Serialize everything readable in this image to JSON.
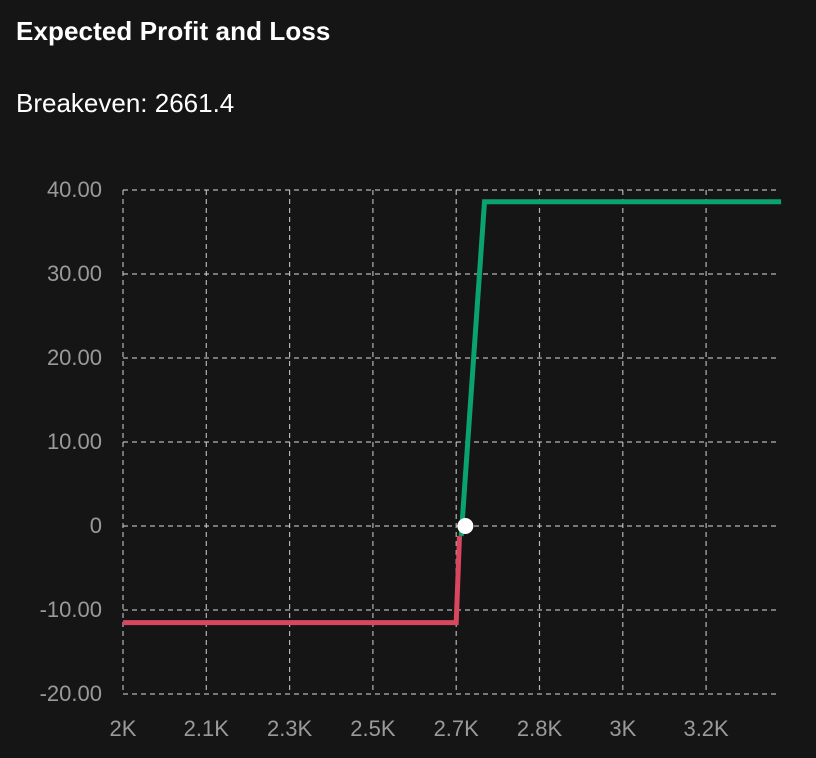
{
  "header": {
    "title": "Expected Profit and Loss",
    "breakeven_label": "Breakeven: 2661.4"
  },
  "colors": {
    "background": "#151515",
    "profit": "#0aa370",
    "loss": "#d9475f",
    "grid": "#d0d0d0",
    "tick_text": "#9a9a9a",
    "breakeven_marker": "#ffffff"
  },
  "chart_data": {
    "type": "line",
    "title": "Expected Profit and Loss",
    "subtitle": "Breakeven: 2661.4",
    "xlabel": "",
    "ylabel": "",
    "x_ticks": [
      "2K",
      "2.1K",
      "2.3K",
      "2.5K",
      "2.7K",
      "2.8K",
      "3K",
      "3.2K"
    ],
    "y_ticks": [
      "40.00",
      "30.00",
      "20.00",
      "10.00",
      "0",
      "-10.00",
      "-20.00"
    ],
    "ylim": [
      -20,
      40
    ],
    "grid": true,
    "line_style": "dashed grid",
    "series": [
      {
        "segment": "loss",
        "points": [
          {
            "x_index": 0.0,
            "y": -11.5
          },
          {
            "x_index": 4.0,
            "y": -11.5
          },
          {
            "x_index": 4.04,
            "y": -1.2
          }
        ]
      },
      {
        "segment": "profit",
        "points": [
          {
            "x_index": 4.06,
            "y": -1.2
          },
          {
            "x_index": 4.34,
            "y": 38.6
          },
          {
            "x_index": 7.9,
            "y": 38.6
          }
        ]
      }
    ],
    "breakeven": {
      "x_index": 4.11,
      "y": 0,
      "value": 2661.4
    }
  }
}
